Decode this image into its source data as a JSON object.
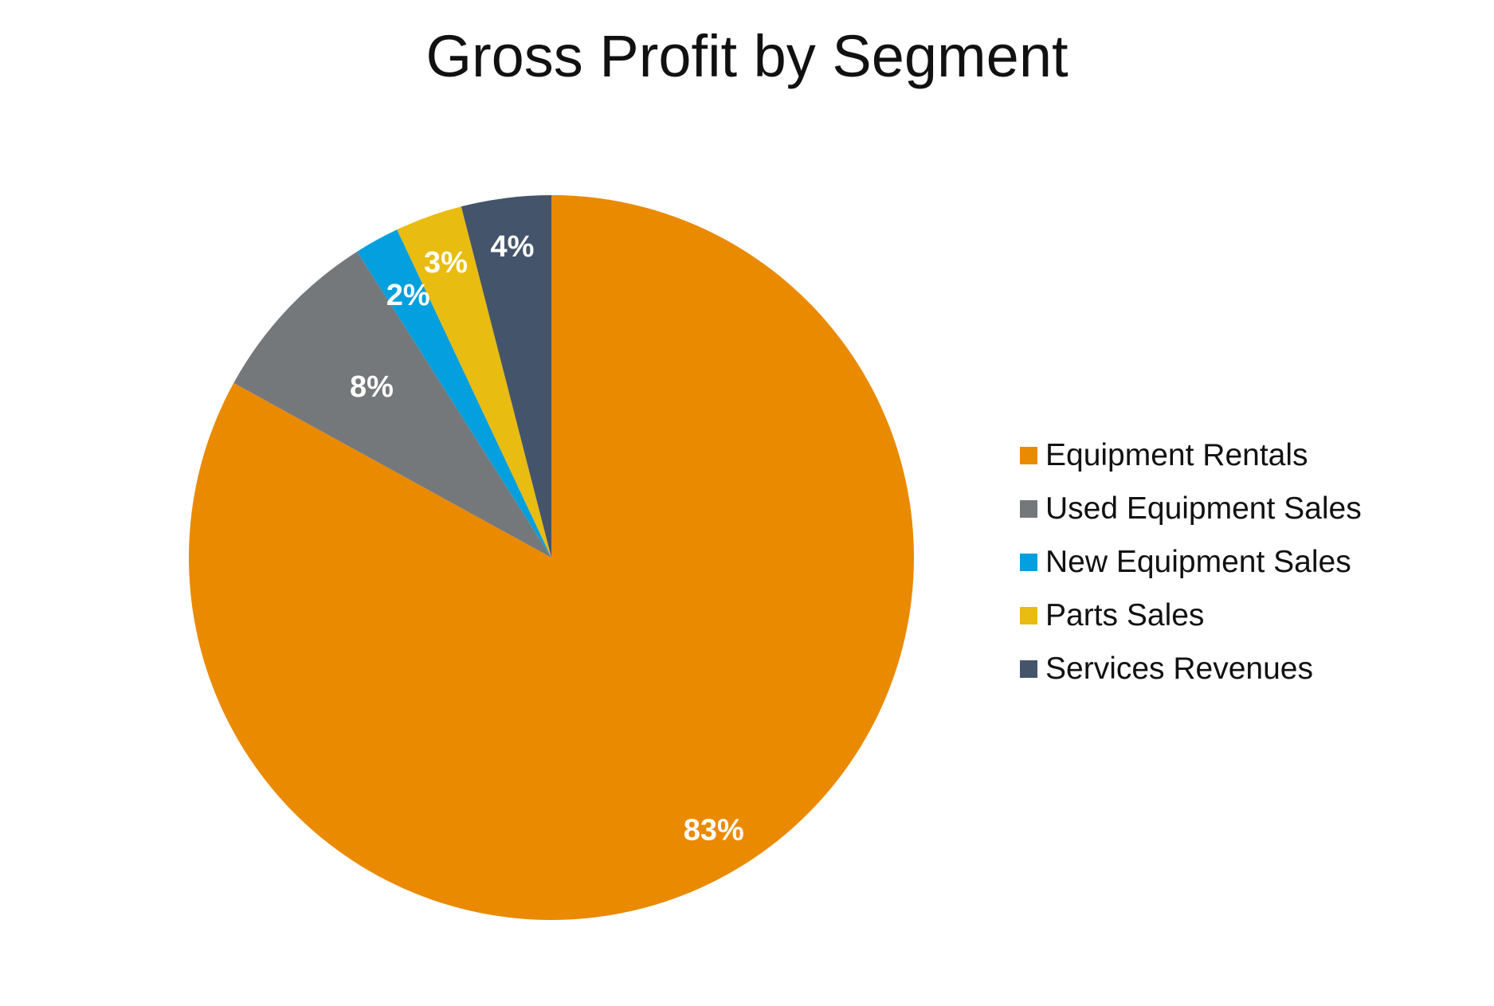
{
  "chart_data": {
    "type": "pie",
    "title": "Gross Profit by Segment",
    "categories": [
      "Equipment Rentals",
      "Used Equipment Sales",
      "New Equipment Sales",
      "Parts Sales",
      "Services Revenues"
    ],
    "values": [
      83,
      8,
      2,
      3,
      4
    ],
    "value_labels": [
      "83%",
      "8%",
      "2%",
      "3%",
      "4%"
    ],
    "colors": [
      "#EA8A00",
      "#75787B",
      "#049FDE",
      "#E8BC10",
      "#44546A"
    ],
    "legend_position": "right",
    "start_angle_deg": 0,
    "direction": "clockwise"
  }
}
